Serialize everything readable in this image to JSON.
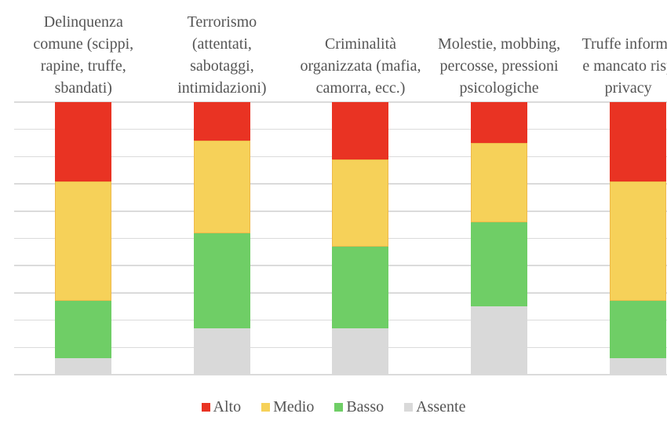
{
  "chart_data": {
    "type": "bar",
    "subtype": "100-percent-stacked-column",
    "orientation": "vertical",
    "unit": "percent",
    "ylim": [
      0,
      100
    ],
    "axis_tick_labels_visible": false,
    "gridlines": {
      "count": 11,
      "step_percent": 10,
      "color": "#DBDBDB",
      "on": true
    },
    "legend_position": "bottom",
    "text_color": "#555555",
    "categories": [
      {
        "lines": [
          "Delinquenza",
          "comune (scippi,",
          "rapine, truffe,",
          "sbandati)"
        ],
        "clipped": false
      },
      {
        "lines": [
          "Terrorismo",
          "(attentati,",
          "sabotaggi,",
          "intimidazioni)"
        ],
        "clipped": false
      },
      {
        "lines": [
          "Criminalità",
          "organizzata (mafia,",
          "camorra, ecc.)"
        ],
        "clipped": false
      },
      {
        "lines": [
          "Molestie, mobbing,",
          "percosse, pressioni",
          "psicologiche"
        ],
        "clipped": false
      },
      {
        "lines": [
          "Truffe informa",
          "e mancato risp",
          "privacy"
        ],
        "clipped": true
      }
    ],
    "series": [
      {
        "name": "Alto",
        "color": "#E93323",
        "border_color": "#E93323",
        "values": [
          29,
          14,
          21,
          15,
          29
        ]
      },
      {
        "name": "Medio",
        "color": "#F6D159",
        "border_color": "#EEB94A",
        "values": [
          44,
          34,
          32,
          29,
          44
        ]
      },
      {
        "name": "Basso",
        "color": "#6FCE66",
        "border_color": "#6FCE66",
        "values": [
          21,
          35,
          30,
          31,
          21
        ]
      },
      {
        "name": "Assente",
        "color": "#D9D9D9",
        "border_color": "#D9D9D9",
        "values": [
          6,
          17,
          17,
          25,
          6
        ]
      }
    ]
  }
}
